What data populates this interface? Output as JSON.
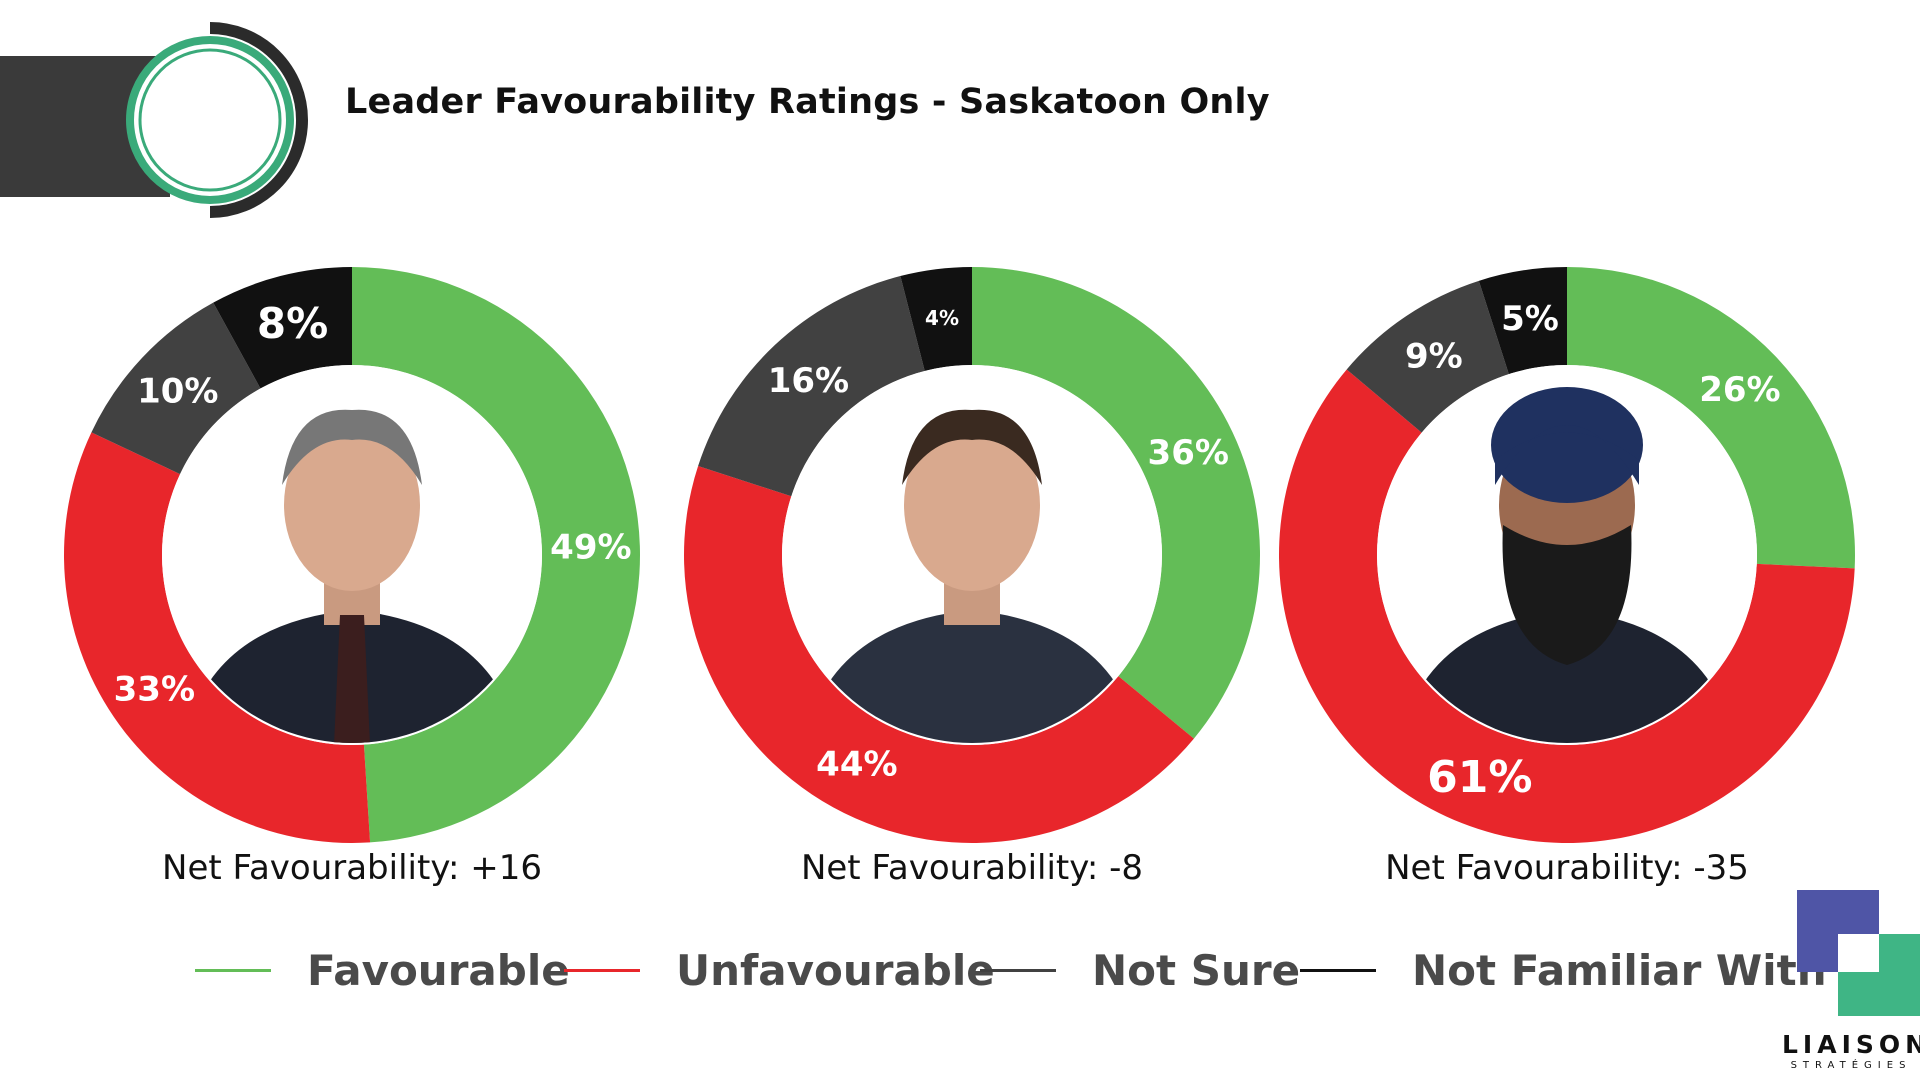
{
  "title": "Leader Favourability Ratings - Saskatoon Only",
  "colors": {
    "favourable": "#63bd57",
    "unfavourable": "#e8262b",
    "not_sure": "#414141",
    "not_familiar": "#111111",
    "accent_green": "#3aaa7a",
    "logo_purple": "#4f55a6",
    "logo_green": "#3fb585"
  },
  "legend": [
    {
      "label": "Favourable",
      "color": "#63bd57"
    },
    {
      "label": "Unfavourable",
      "color": "#e8262b"
    },
    {
      "label": "Not Sure",
      "color": "#414141"
    },
    {
      "label": "Not Familiar With",
      "color": "#111111"
    }
  ],
  "chart_data": [
    {
      "type": "pie",
      "labels": [
        "Favourable",
        "Unfavourable",
        "Not Sure",
        "Not Familiar With"
      ],
      "values": [
        49,
        33,
        10,
        8
      ],
      "value_labels": [
        "49%",
        "33%",
        "10%",
        "8%"
      ],
      "net_label": "Net Favourability: +16"
    },
    {
      "type": "pie",
      "labels": [
        "Favourable",
        "Unfavourable",
        "Not Sure",
        "Not Familiar With"
      ],
      "values": [
        36,
        44,
        16,
        4
      ],
      "value_labels": [
        "36%",
        "44%",
        "16%",
        "4%"
      ],
      "net_label": "Net Favourability: -8"
    },
    {
      "type": "pie",
      "labels": [
        "Favourable",
        "Unfavourable",
        "Not Sure",
        "Not Familiar With"
      ],
      "values": [
        26,
        61,
        9,
        5
      ],
      "value_labels": [
        "26%",
        "61%",
        "9%",
        "5%"
      ],
      "net_label": "Net Favourability: -35"
    }
  ],
  "logo": {
    "name": "LIAISON",
    "subtitle": "STRATÉGIES"
  }
}
